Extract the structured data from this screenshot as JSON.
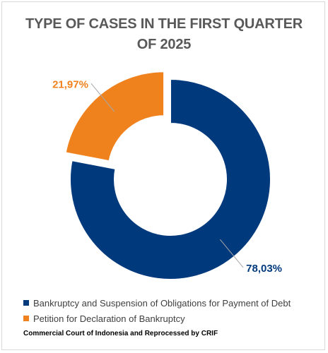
{
  "chart_data": {
    "type": "pie",
    "subtype": "donut",
    "title_lines": [
      "TYPE OF CASES IN THE FIRST QUARTER",
      "OF 2025"
    ],
    "slices": [
      {
        "name": "Bankruptcy and Suspension of Obligations for Payment of Debt",
        "value": 78.03,
        "label": "78,03%",
        "color": "#003A7D"
      },
      {
        "name": "Petition for Declaration of Bankruptcy",
        "value": 21.97,
        "label": "21,97%",
        "color": "#F0821E",
        "exploded": true
      }
    ],
    "legend_position": "bottom-left",
    "source": "Commercial Court of Indonesia and Reprocessed by CRIF"
  }
}
